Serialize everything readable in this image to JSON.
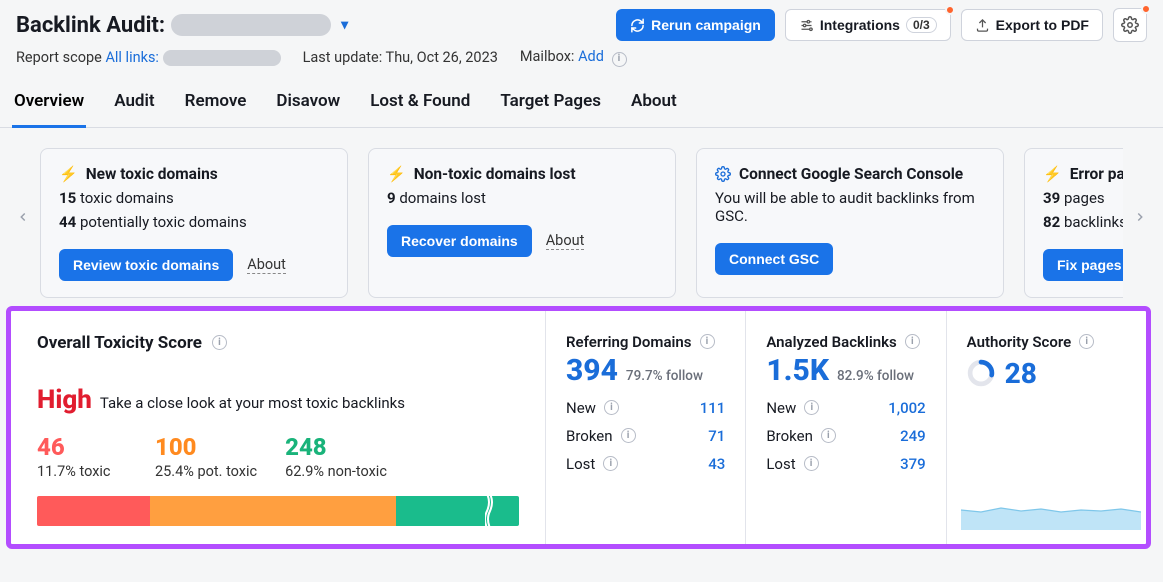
{
  "colors": {
    "accent": "#1a73e8",
    "link": "#1a6dd9",
    "highlight_border": "#b34dff",
    "notif_dot": "#ff642d",
    "toxic_red": "#ff5a5a",
    "pot_orange": "#ff9f40",
    "nontoxic_green": "#1abc8c",
    "sparkline": "#bfe4f7"
  },
  "header": {
    "title_prefix": "Backlink Audit:",
    "rerun_label": "Rerun campaign",
    "integrations_label": "Integrations",
    "integrations_count": "0/3",
    "export_label": "Export to PDF"
  },
  "subheader": {
    "scope_label": "Report scope",
    "scope_link": "All links:",
    "last_update_label": "Last update: Thu, Oct 26, 2023",
    "mailbox_label": "Mailbox:",
    "mailbox_link": "Add"
  },
  "tabs": [
    "Overview",
    "Audit",
    "Remove",
    "Disavow",
    "Lost & Found",
    "Target Pages",
    "About"
  ],
  "active_tab": 0,
  "cards": [
    {
      "icon": "bolt",
      "title": "New toxic domains",
      "lines": [
        {
          "b": "15",
          "t": " toxic domains"
        },
        {
          "b": "44",
          "t": " potentially toxic domains"
        }
      ],
      "cta": "Review toxic domains",
      "about": "About"
    },
    {
      "icon": "bolt",
      "title": "Non-toxic domains lost",
      "lines": [
        {
          "b": "9",
          "t": " domains lost"
        }
      ],
      "cta": "Recover domains",
      "about": "About"
    },
    {
      "icon": "gear",
      "title": "Connect Google Search Console",
      "lines": [
        {
          "b": "",
          "t": "You will be able to audit backlinks from GSC."
        }
      ],
      "cta": "Connect GSC",
      "about": ""
    },
    {
      "icon": "bolt",
      "title": "Error pages",
      "lines": [
        {
          "b": "39",
          "t": " pages"
        },
        {
          "b": "82",
          "t": " backlinks"
        }
      ],
      "cta": "Fix pages",
      "about": ""
    }
  ],
  "toxicity": {
    "title": "Overall Toxicity Score",
    "level": "High",
    "level_msg": "Take a close look at your most toxic backlinks",
    "toxic": {
      "n": "46",
      "pct": "11.7% toxic",
      "color": "#ff5a5a",
      "w": 23.5
    },
    "pot": {
      "n": "100",
      "pct": "25.4% pot. toxic",
      "color": "#ff9f40",
      "w": 51.0
    },
    "nontoxic": {
      "n": "248",
      "pct": "62.9% non-toxic",
      "color": "#1abc8c",
      "w": 25.5
    }
  },
  "ref_domains": {
    "title": "Referring Domains",
    "value": "394",
    "pct": "79.7% follow",
    "rows": [
      {
        "l": "New",
        "v": "111"
      },
      {
        "l": "Broken",
        "v": "71"
      },
      {
        "l": "Lost",
        "v": "43"
      }
    ]
  },
  "backlinks": {
    "title": "Analyzed Backlinks",
    "value": "1.5K",
    "pct": "82.9% follow",
    "rows": [
      {
        "l": "New",
        "v": "1,002"
      },
      {
        "l": "Broken",
        "v": "249"
      },
      {
        "l": "Lost",
        "v": "379"
      }
    ]
  },
  "authority": {
    "title": "Authority Score",
    "value": "28",
    "ring_pct": 0.28
  }
}
